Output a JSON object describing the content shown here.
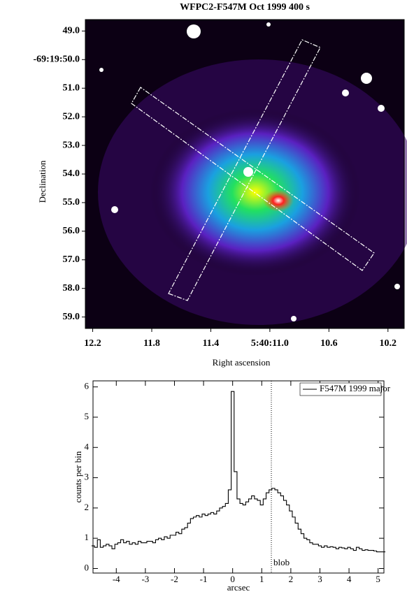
{
  "chart_data": [
    {
      "type": "image",
      "title": "WFPC2-F547M  Oct 1999  400 s",
      "xlabel": "Right ascension",
      "ylabel": "Declination",
      "xlim": [
        12.25,
        10.09
      ],
      "ylim": [
        59.4,
        48.6
      ],
      "xticks": [
        12.2,
        11.8,
        11.4,
        {
          "value": 11.0,
          "label": "5:40:11.0"
        },
        10.6,
        10.2
      ],
      "yticks": [
        {
          "value": 49,
          "label": "49.0"
        },
        {
          "value": 50,
          "label": "-69:19:50.0"
        },
        {
          "value": 51,
          "label": "51.0"
        },
        {
          "value": 52,
          "label": "52.0"
        },
        {
          "value": 53,
          "label": "53.0"
        },
        {
          "value": 54,
          "label": "54.0"
        },
        {
          "value": 55,
          "label": "55.0"
        },
        {
          "value": 56,
          "label": "56.0"
        },
        {
          "value": 57,
          "label": "57.0"
        },
        {
          "value": 58,
          "label": "58.0"
        },
        {
          "value": 59,
          "label": "59.0"
        }
      ]
    },
    {
      "type": "step",
      "xlabel": "arcsec",
      "ylabel": "counts per bin",
      "xlim": [
        -4.8,
        5.2
      ],
      "ylim": [
        -0.15,
        6.2
      ],
      "xticks": [
        -4,
        -3,
        -2,
        -1,
        0,
        1,
        2,
        3,
        4,
        5
      ],
      "yticks": [
        0,
        1,
        2,
        3,
        4,
        5,
        6
      ],
      "legend": "upper right",
      "x": [
        -4.8,
        -4.7,
        -4.6,
        -4.5,
        -4.4,
        -4.3,
        -4.2,
        -4.1,
        -4.0,
        -3.9,
        -3.8,
        -3.7,
        -3.6,
        -3.5,
        -3.4,
        -3.3,
        -3.2,
        -3.1,
        -3.0,
        -2.9,
        -2.8,
        -2.7,
        -2.6,
        -2.5,
        -2.4,
        -2.3,
        -2.2,
        -2.1,
        -2.0,
        -1.9,
        -1.8,
        -1.7,
        -1.6,
        -1.5,
        -1.4,
        -1.3,
        -1.2,
        -1.1,
        -1.0,
        -0.9,
        -0.8,
        -0.7,
        -0.6,
        -0.5,
        -0.4,
        -0.3,
        -0.2,
        -0.1,
        0.0,
        0.1,
        0.2,
        0.3,
        0.4,
        0.5,
        0.6,
        0.7,
        0.8,
        0.9,
        1.0,
        1.1,
        1.2,
        1.3,
        1.4,
        1.5,
        1.6,
        1.7,
        1.8,
        1.9,
        2.0,
        2.1,
        2.2,
        2.3,
        2.4,
        2.5,
        2.6,
        2.7,
        2.8,
        2.9,
        3.0,
        3.1,
        3.2,
        3.3,
        3.4,
        3.5,
        3.6,
        3.7,
        3.8,
        3.9,
        4.0,
        4.1,
        4.2,
        4.3,
        4.4,
        4.5,
        4.6,
        4.7,
        4.8,
        4.9,
        5.0,
        5.1,
        5.2
      ],
      "series": [
        {
          "name": "F547M 1999 major",
          "color": "#000000",
          "values": [
            0.75,
            0.7,
            0.95,
            0.7,
            0.75,
            0.8,
            0.75,
            0.65,
            0.8,
            0.85,
            0.95,
            0.85,
            0.9,
            0.8,
            0.85,
            0.8,
            0.9,
            0.85,
            0.85,
            0.9,
            0.9,
            0.85,
            0.95,
            1.0,
            0.95,
            1.05,
            1.0,
            1.1,
            1.1,
            1.2,
            1.15,
            1.3,
            1.35,
            1.5,
            1.65,
            1.7,
            1.75,
            1.7,
            1.8,
            1.75,
            1.8,
            1.85,
            1.8,
            1.9,
            2.0,
            2.05,
            2.15,
            2.6,
            5.85,
            3.2,
            2.3,
            2.15,
            2.1,
            2.2,
            2.3,
            2.4,
            2.3,
            2.25,
            2.1,
            2.3,
            2.5,
            2.6,
            2.65,
            2.6,
            2.5,
            2.4,
            2.25,
            2.1,
            1.9,
            1.7,
            1.5,
            1.3,
            1.15,
            1.0,
            0.95,
            0.85,
            0.8,
            0.8,
            0.75,
            0.7,
            0.75,
            0.7,
            0.72,
            0.7,
            0.65,
            0.7,
            0.68,
            0.65,
            0.7,
            0.65,
            0.6,
            0.7,
            0.65,
            0.6,
            0.62,
            0.6,
            0.6,
            0.58,
            0.55,
            0.55,
            0.55
          ]
        }
      ],
      "markers": [
        {
          "x": 1.33,
          "label": "blob"
        }
      ]
    }
  ]
}
